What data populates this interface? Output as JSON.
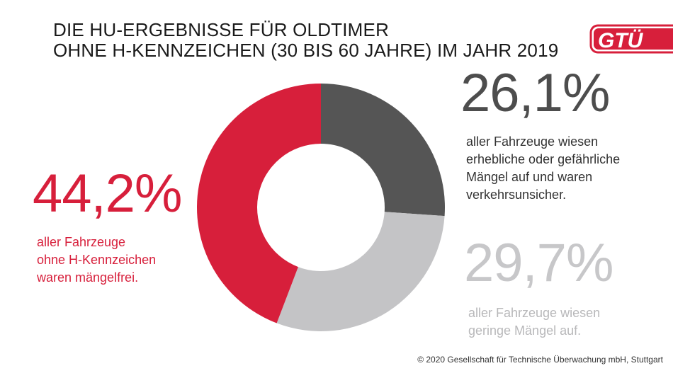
{
  "title_lines": [
    "DIE HU-ERGEBNISSE FÜR OLDTIMER",
    "OHNE H-KENNZEICHEN (30 BIS 60 JAHRE) IM JAHR 2019"
  ],
  "logo_text": "GTÜ",
  "colors": {
    "red": "#d71f3b",
    "dark": "#555555",
    "light": "#c4c4c6"
  },
  "chart_data": {
    "type": "pie",
    "variant": "donut",
    "slices": [
      {
        "label": "aller Fahrzeuge wiesen erhebliche oder gefährliche Mängel auf und waren verkehrsunsicher.",
        "value": 26.1,
        "display": "26,1%",
        "color": "#555555"
      },
      {
        "label": "aller Fahrzeuge wiesen geringe Mängel auf.",
        "value": 29.7,
        "display": "29,7%",
        "color": "#c4c4c6"
      },
      {
        "label": "aller Fahrzeuge ohne H-Kennzeichen waren mängelfrei.",
        "value": 44.2,
        "display": "44,2%",
        "color": "#d71f3b"
      }
    ]
  },
  "stats": {
    "red": {
      "pct": "44,2%",
      "lines": [
        "aller Fahrzeuge",
        "ohne H-Kennzeichen",
        "waren mängelfrei."
      ]
    },
    "dark": {
      "pct": "26,1%",
      "lines": [
        "aller Fahrzeuge wiesen",
        "erhebliche oder gefährliche",
        "Mängel auf und waren",
        "verkehrsunsicher."
      ]
    },
    "light": {
      "pct": "29,7%",
      "lines": [
        "aller Fahrzeuge wiesen",
        "geringe Mängel auf."
      ]
    }
  },
  "footer": "© 2020 Gesellschaft für Technische Überwachung mbH, Stuttgart"
}
